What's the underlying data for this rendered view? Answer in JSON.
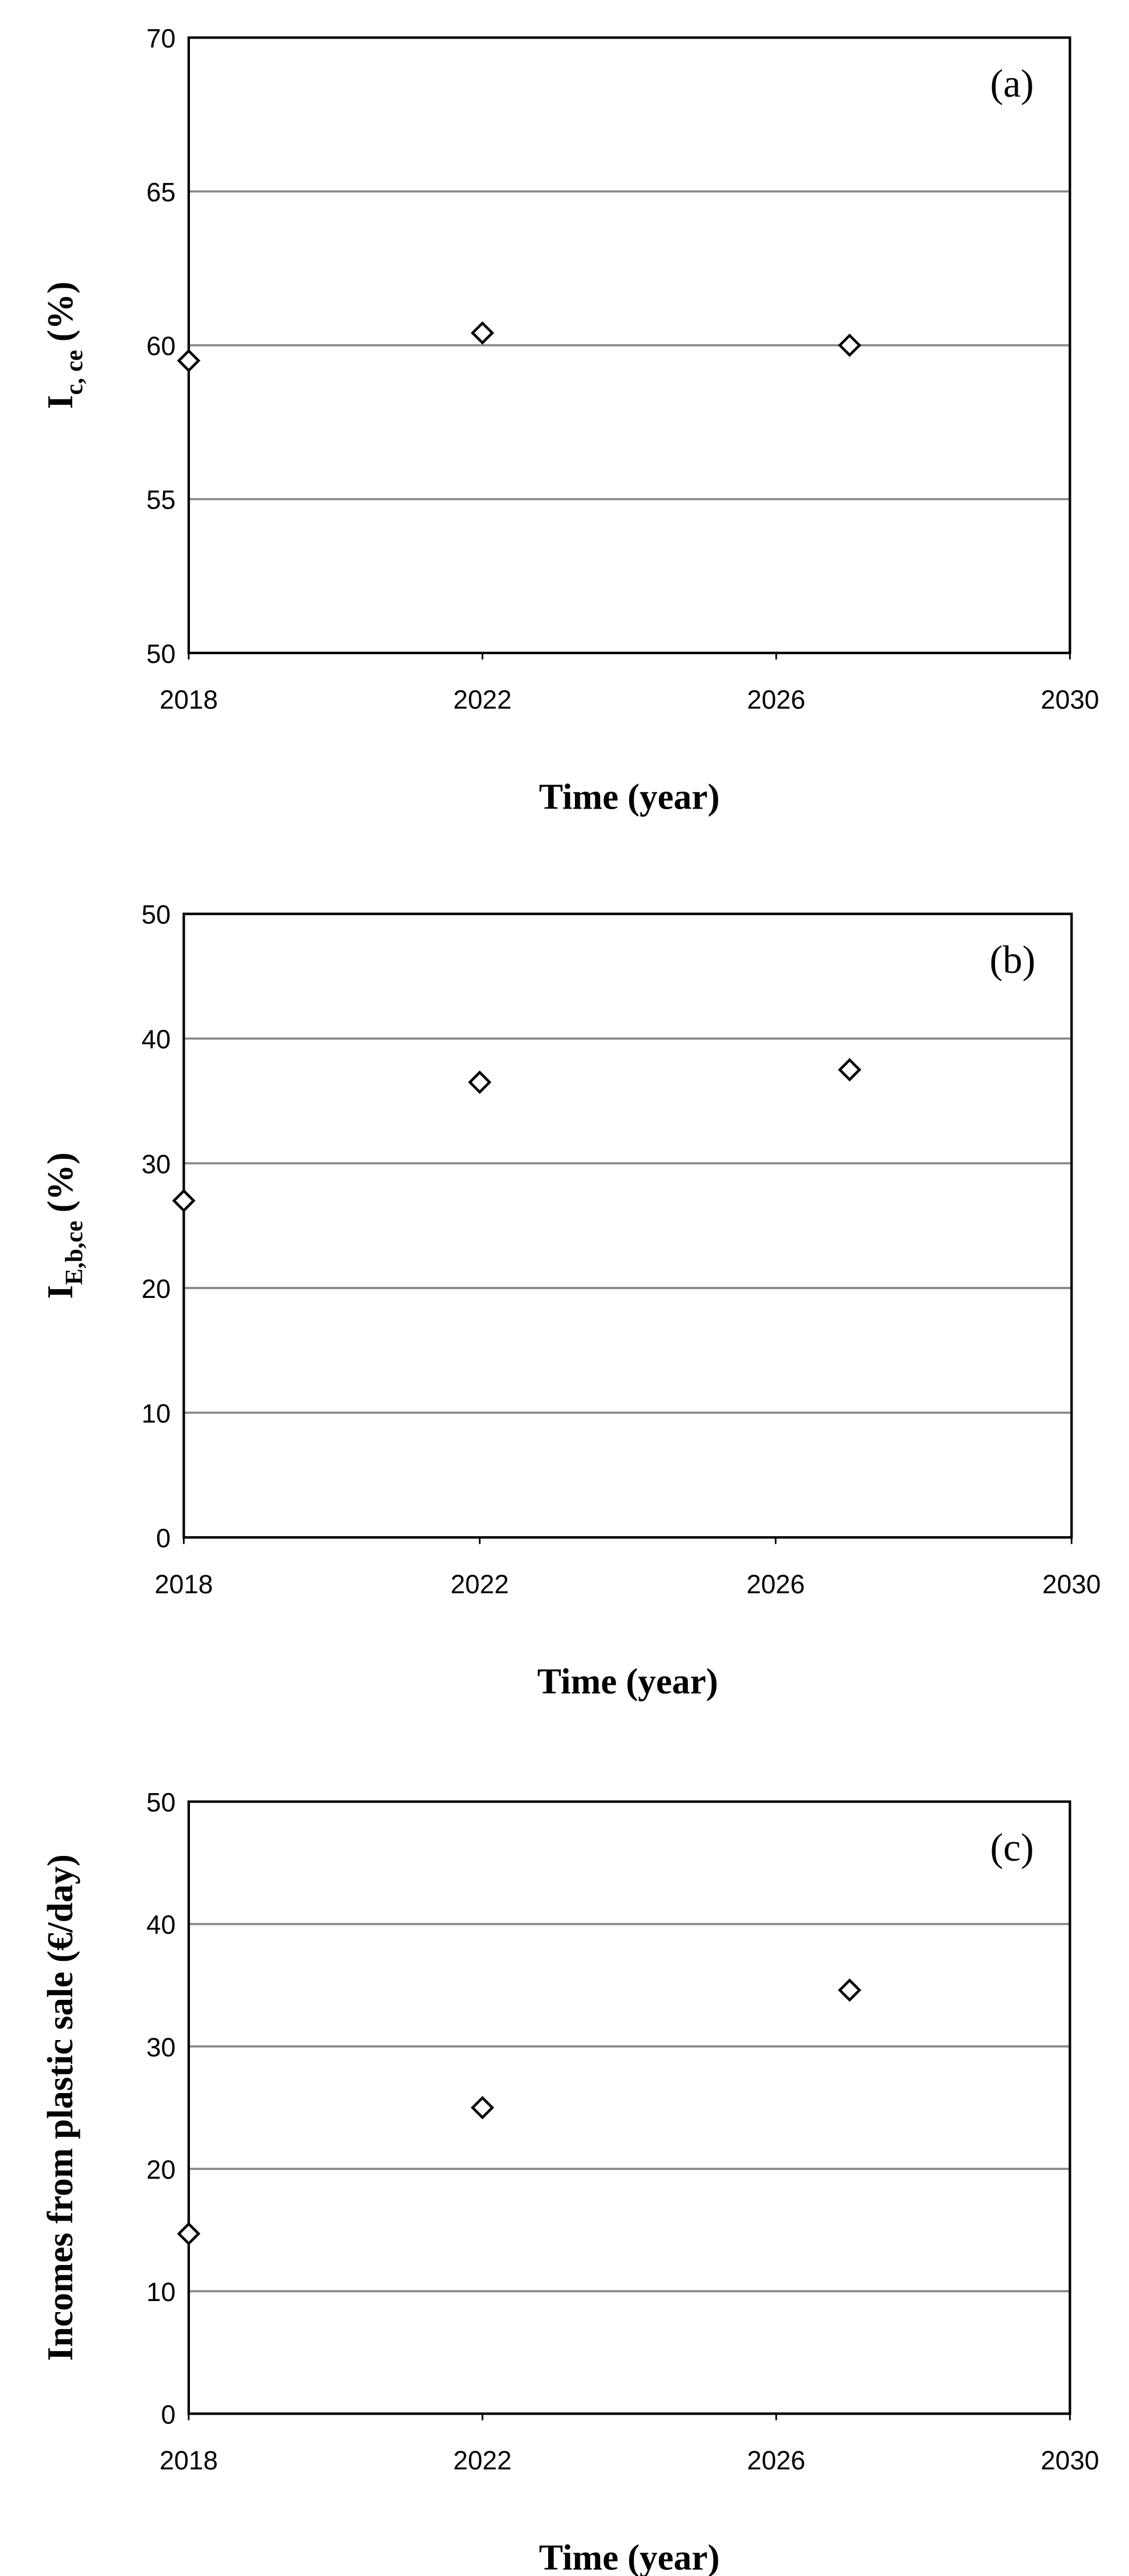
{
  "chart_data": [
    {
      "type": "scatter",
      "annotation": "(a)",
      "x_label": "Time (year)",
      "y_label": {
        "main": "I",
        "sub": "c, ce",
        "unit": "(%)"
      },
      "x": [
        2018,
        2022,
        2027
      ],
      "values": [
        59.5,
        60.4,
        60.0
      ],
      "color": "#000000",
      "xlim": [
        2018,
        2030
      ],
      "ylim": [
        50,
        70
      ],
      "xticks": [
        2018,
        2022,
        2026,
        2030
      ],
      "yticks": [
        50,
        55,
        60,
        65,
        70
      ],
      "grid": true
    },
    {
      "type": "scatter",
      "annotation": "(b)",
      "x_label": "Time (year)",
      "y_label": {
        "main": "I",
        "sub": "E,b,ce",
        "unit": "(%)"
      },
      "x": [
        2018,
        2022,
        2027
      ],
      "values": [
        27,
        36.5,
        37.5
      ],
      "color": "#000000",
      "xlim": [
        2018,
        2030
      ],
      "ylim": [
        0,
        50
      ],
      "xticks": [
        2018,
        2022,
        2026,
        2030
      ],
      "yticks": [
        0,
        10,
        20,
        30,
        40,
        50
      ],
      "grid": true
    },
    {
      "type": "scatter",
      "annotation": "(c)",
      "x_label": "Time (year)",
      "y_label": {
        "main": "Incomes from plastic sale (€/day)"
      },
      "x": [
        2018,
        2022,
        2027
      ],
      "values": [
        14.7,
        25,
        34.6
      ],
      "color": "#000000",
      "xlim": [
        2018,
        2030
      ],
      "ylim": [
        0,
        50
      ],
      "xticks": [
        2018,
        2022,
        2026,
        2030
      ],
      "yticks": [
        0,
        10,
        20,
        30,
        40,
        50
      ],
      "grid": true
    }
  ]
}
